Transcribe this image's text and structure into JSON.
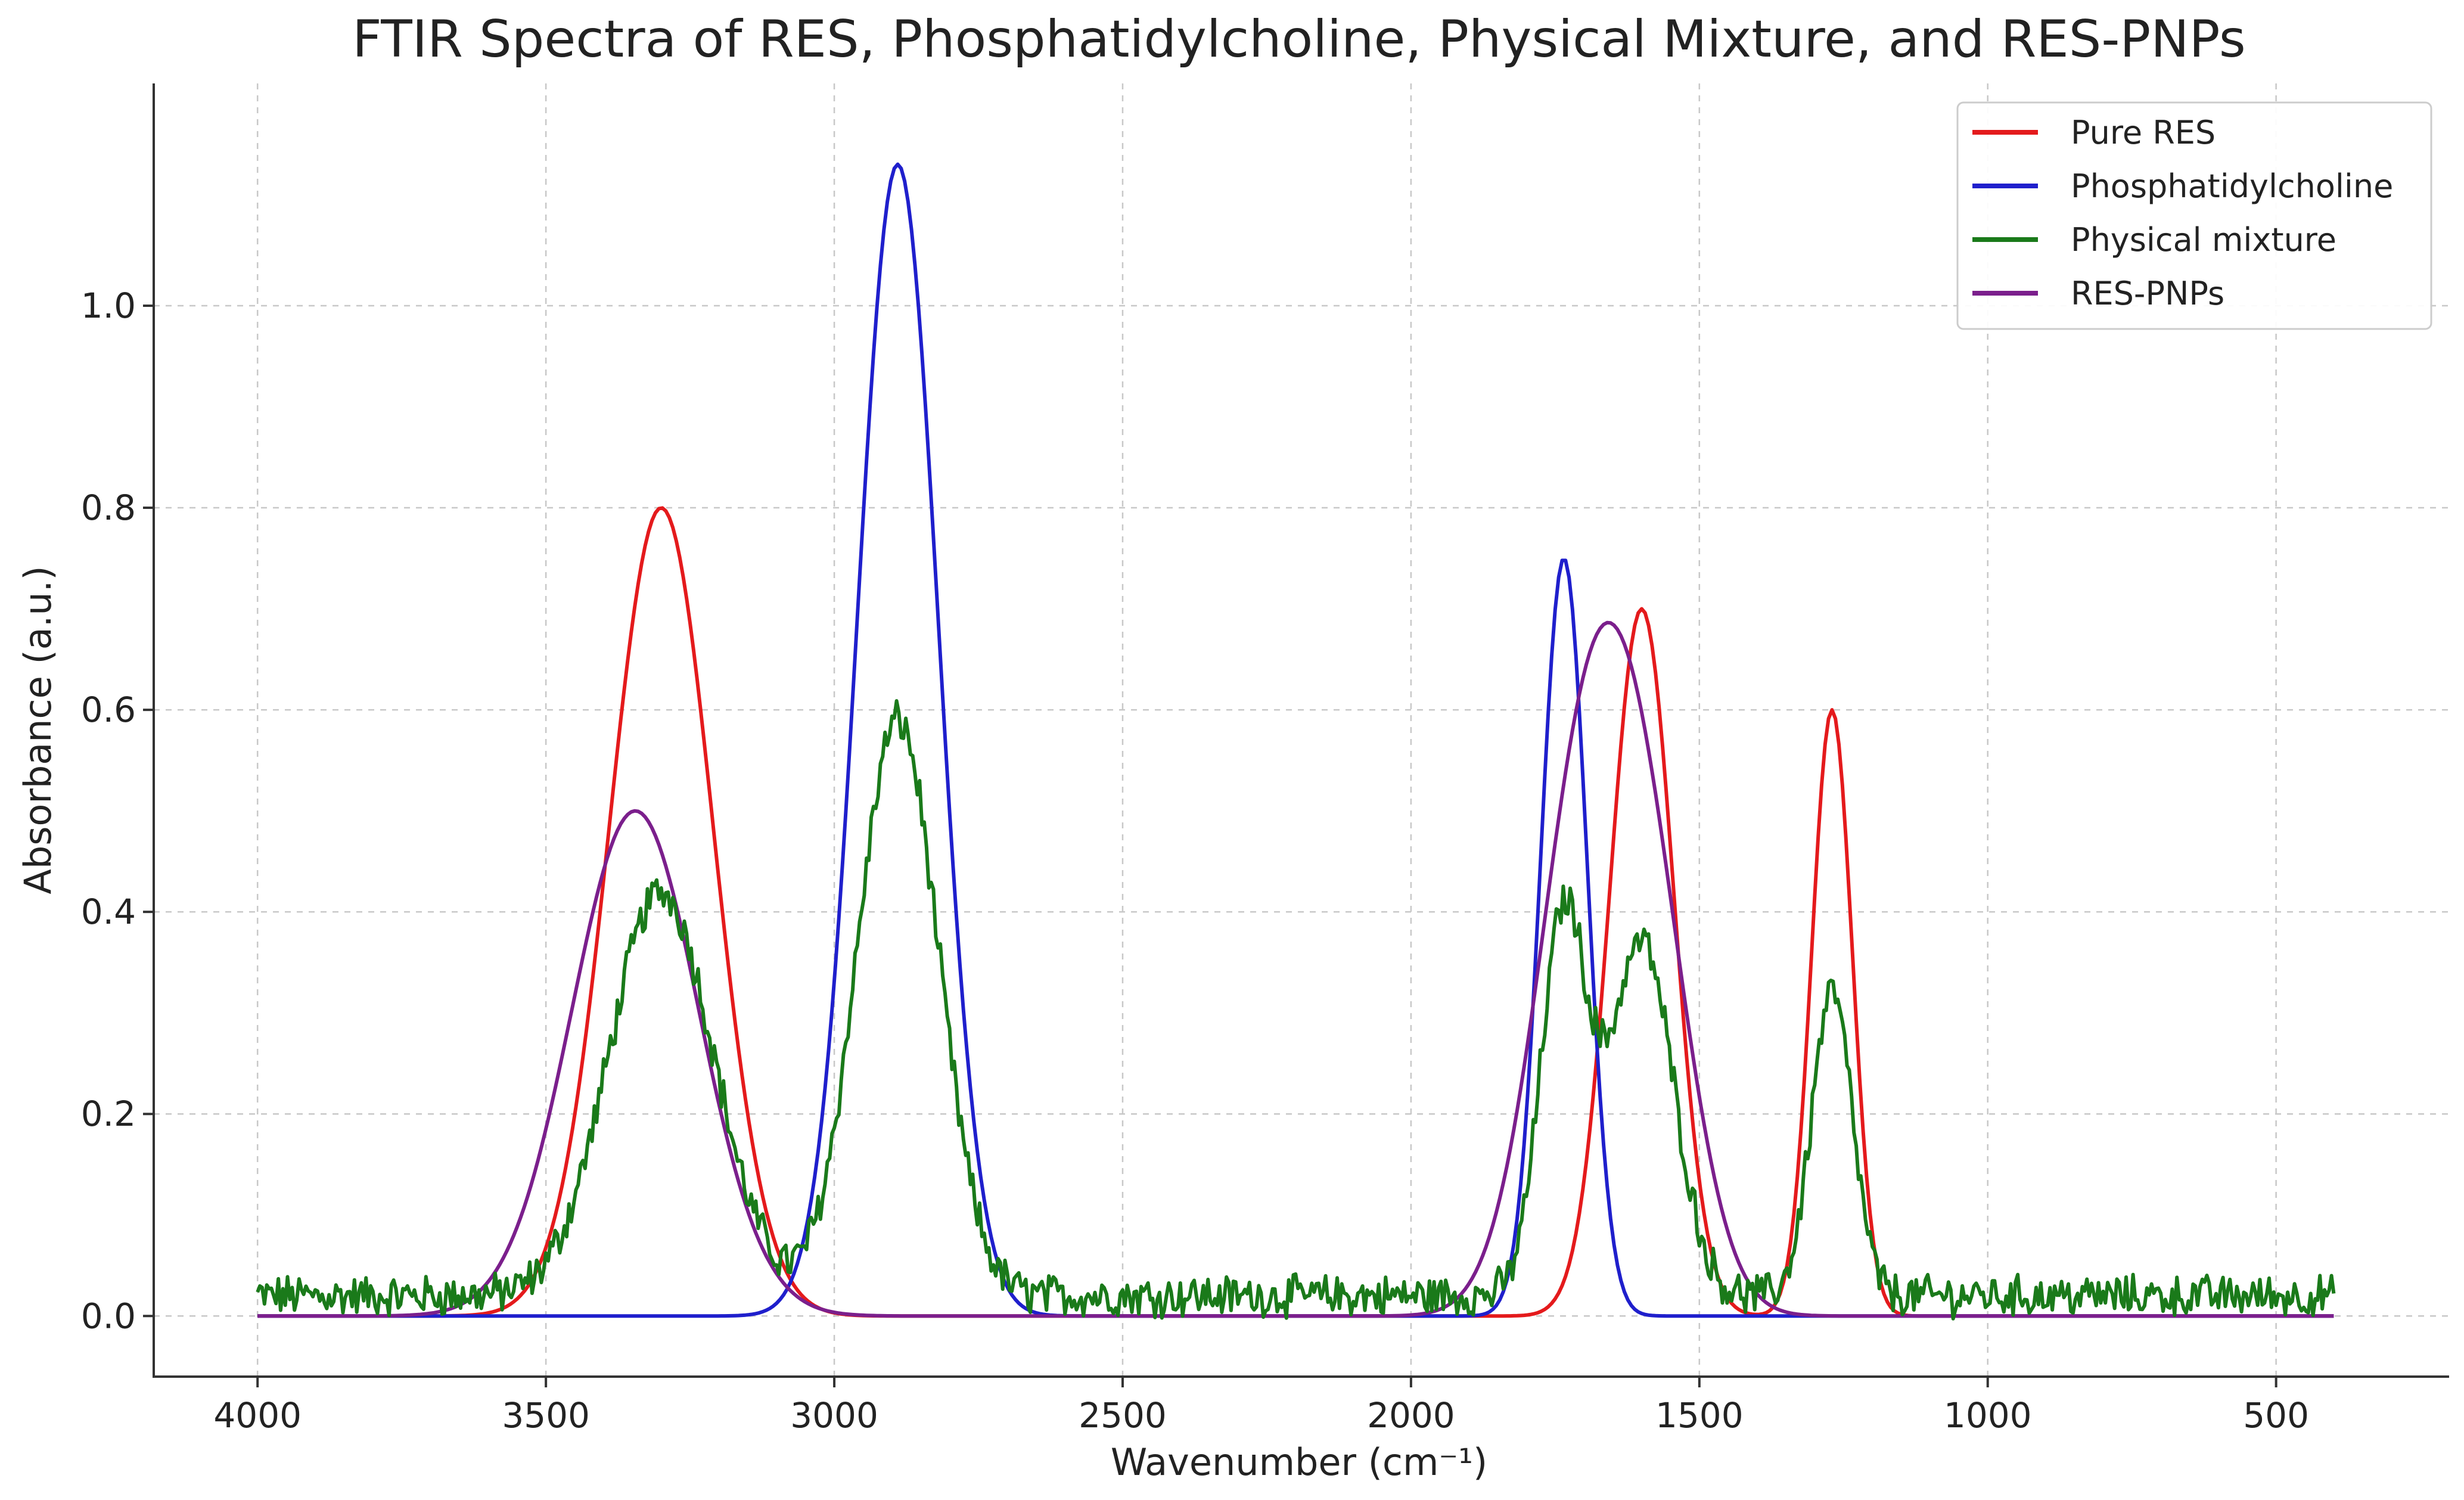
{
  "chart_data": {
    "type": "line",
    "title": "FTIR Spectra of RES, Phosphatidylcholine, Physical Mixture, and RES-PNPs",
    "xlabel": "Wavenumber (cm⁻¹)",
    "ylabel": "Absorbance (a.u.)",
    "xlim": [
      4180,
      200
    ],
    "ylim": [
      -0.06,
      1.22
    ],
    "x_ticks": [
      4000,
      3500,
      3000,
      2500,
      2000,
      1500,
      1000,
      500
    ],
    "x_tick_labels": [
      "4000",
      "3500",
      "3000",
      "2500",
      "2000",
      "1500",
      "1000",
      "500"
    ],
    "y_ticks": [
      0.0,
      0.2,
      0.4,
      0.6,
      0.8,
      1.0
    ],
    "y_tick_labels": [
      "0.0",
      "0.2",
      "0.4",
      "0.6",
      "0.8",
      "1.0"
    ],
    "grid": true,
    "legend_position": "top-right",
    "x_range": [
      4000,
      400
    ],
    "series": [
      {
        "name": "Pure RES",
        "color": "#e41a1c",
        "peaks": [
          {
            "center": 3300,
            "height": 0.8,
            "width": 90
          },
          {
            "center": 1600,
            "height": 0.7,
            "width": 55
          },
          {
            "center": 1270,
            "height": 0.6,
            "width": 35
          }
        ],
        "baseline": 0.0,
        "noise": 0.0
      },
      {
        "name": "Phosphatidylcholine",
        "color": "#1f1fcc",
        "peaks": [
          {
            "center": 2890,
            "height": 1.14,
            "width": 70
          },
          {
            "center": 1735,
            "height": 0.75,
            "width": 40
          }
        ],
        "baseline": 0.0,
        "noise": 0.0
      },
      {
        "name": "Physical mixture",
        "color": "#1a7a1a",
        "peaks": [
          {
            "center": 3300,
            "height": 0.4,
            "width": 90
          },
          {
            "center": 2890,
            "height": 0.57,
            "width": 70
          },
          {
            "center": 1735,
            "height": 0.375,
            "width": 40
          },
          {
            "center": 1600,
            "height": 0.35,
            "width": 55
          },
          {
            "center": 1270,
            "height": 0.3,
            "width": 35
          }
        ],
        "baseline": 0.025,
        "noise": 0.018
      },
      {
        "name": "RES-PNPs",
        "color": "#7b1f8c",
        "peaks": [
          {
            "center": 3345,
            "height": 0.5,
            "width": 110
          },
          {
            "center": 1700,
            "height": 0.5,
            "width": 85
          },
          {
            "center": 1590,
            "height": 0.35,
            "width": 80
          }
        ],
        "baseline": 0.0,
        "noise": 0.0
      }
    ]
  }
}
